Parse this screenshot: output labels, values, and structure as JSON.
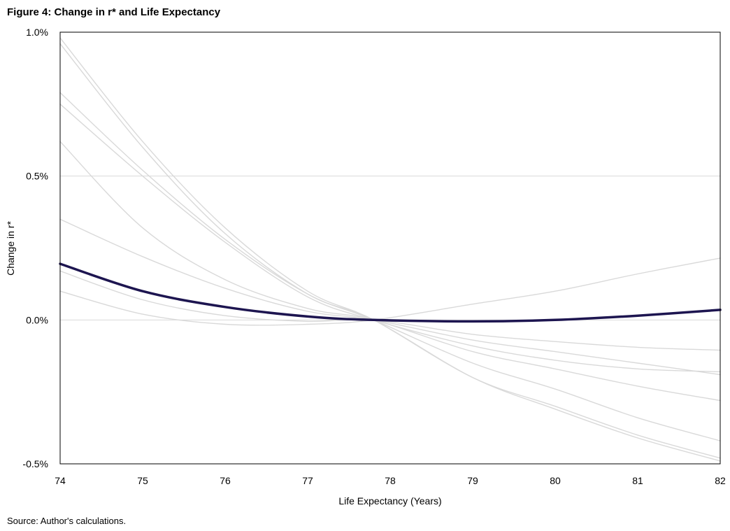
{
  "figure": {
    "title": "Figure 4: Change in r* and Life Expectancy",
    "source": "Source: Author's calculations."
  },
  "chart_data": {
    "type": "line",
    "title": "Figure 4: Change in r* and Life Expectancy",
    "xlabel": "Life Expectancy (Years)",
    "ylabel": "Change in r*",
    "xlim": [
      74,
      82
    ],
    "ylim": [
      -0.5,
      1.0
    ],
    "x_ticks": [
      "74",
      "75",
      "76",
      "77",
      "78",
      "79",
      "80",
      "81",
      "82"
    ],
    "y_ticks": [
      {
        "value": 1.0,
        "label": "1.0%"
      },
      {
        "value": 0.5,
        "label": "0.5%"
      },
      {
        "value": 0.0,
        "label": "0.0%"
      },
      {
        "value": -0.5,
        "label": "-0.5%"
      }
    ],
    "grid": "horizontal",
    "legend": "none",
    "colors": {
      "highlight": "#1d1550",
      "background_lines": "#d9d9d9",
      "grid": "#d9d9d9"
    },
    "x": [
      74,
      75,
      76,
      77,
      77.8,
      79,
      80,
      81,
      82
    ],
    "series": [
      {
        "highlight": true,
        "values": [
          0.195,
          0.1,
          0.045,
          0.012,
          0.0,
          -0.005,
          0.0,
          0.015,
          0.035
        ]
      },
      {
        "highlight": false,
        "values": [
          0.98,
          0.62,
          0.32,
          0.1,
          0.0,
          -0.2,
          -0.3,
          -0.4,
          -0.48
        ]
      },
      {
        "highlight": false,
        "values": [
          0.96,
          0.6,
          0.3,
          0.09,
          0.0,
          -0.2,
          -0.31,
          -0.41,
          -0.49
        ]
      },
      {
        "highlight": false,
        "values": [
          0.79,
          0.52,
          0.28,
          0.09,
          0.0,
          -0.15,
          -0.24,
          -0.34,
          -0.42
        ]
      },
      {
        "highlight": false,
        "values": [
          0.75,
          0.5,
          0.27,
          0.08,
          0.0,
          -0.09,
          -0.14,
          -0.17,
          -0.18
        ]
      },
      {
        "highlight": false,
        "values": [
          0.62,
          0.32,
          0.14,
          0.04,
          0.0,
          -0.11,
          -0.17,
          -0.23,
          -0.28
        ]
      },
      {
        "highlight": false,
        "values": [
          0.35,
          0.22,
          0.11,
          0.03,
          0.0,
          -0.07,
          -0.11,
          -0.15,
          -0.19
        ]
      },
      {
        "highlight": false,
        "values": [
          0.17,
          0.07,
          0.015,
          -0.005,
          0.0,
          -0.05,
          -0.075,
          -0.095,
          -0.105
        ]
      },
      {
        "highlight": false,
        "values": [
          0.1,
          0.02,
          -0.015,
          -0.015,
          0.0,
          0.055,
          0.1,
          0.16,
          0.215
        ]
      }
    ]
  }
}
